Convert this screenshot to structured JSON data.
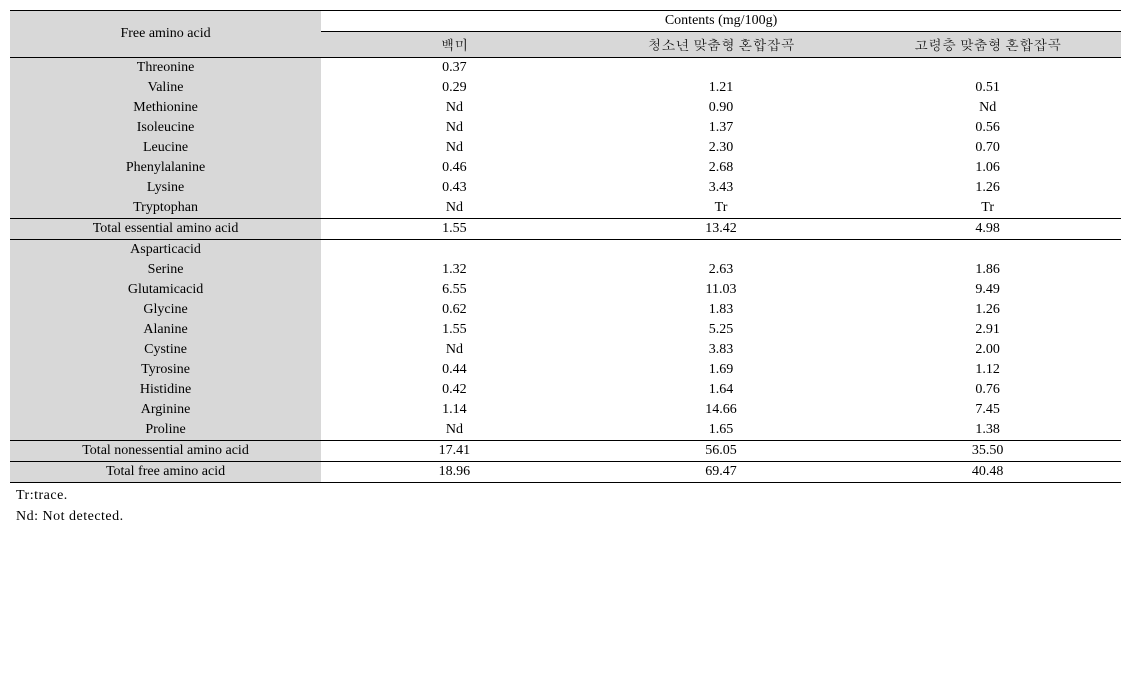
{
  "header": {
    "rowLabel": "Free amino acid",
    "superHeader": "Contents (mg/100g)",
    "columns": [
      "백미",
      "청소년 맞춤형 혼합잡곡",
      "고령층 맞춤형 혼합잡곡"
    ]
  },
  "essential": [
    {
      "name": "Threonine",
      "v1": "0.37",
      "v2": "",
      "v3": ""
    },
    {
      "name": "Valine",
      "v1": "0.29",
      "v2": "1.21",
      "v3": "0.51"
    },
    {
      "name": "Methionine",
      "v1": "Nd",
      "v2": "0.90",
      "v3": "Nd"
    },
    {
      "name": "Isoleucine",
      "v1": "Nd",
      "v2": "1.37",
      "v3": "0.56"
    },
    {
      "name": "Leucine",
      "v1": "Nd",
      "v2": "2.30",
      "v3": "0.70"
    },
    {
      "name": "Phenylalanine",
      "v1": "0.46",
      "v2": "2.68",
      "v3": "1.06"
    },
    {
      "name": "Lysine",
      "v1": "0.43",
      "v2": "3.43",
      "v3": "1.26"
    },
    {
      "name": "Tryptophan",
      "v1": "Nd",
      "v2": "Tr",
      "v3": "Tr"
    }
  ],
  "essentialTotal": {
    "name": "Total essential amino acid",
    "v1": "1.55",
    "v2": "13.42",
    "v3": "4.98"
  },
  "nonessential": [
    {
      "name": "Asparticacid",
      "v1": "",
      "v2": "",
      "v3": ""
    },
    {
      "name": "Serine",
      "v1": "1.32",
      "v2": "2.63",
      "v3": "1.86"
    },
    {
      "name": "Glutamicacid",
      "v1": "6.55",
      "v2": "11.03",
      "v3": "9.49"
    },
    {
      "name": "Glycine",
      "v1": "0.62",
      "v2": "1.83",
      "v3": "1.26"
    },
    {
      "name": "Alanine",
      "v1": "1.55",
      "v2": "5.25",
      "v3": "2.91"
    },
    {
      "name": "Cystine",
      "v1": "Nd",
      "v2": "3.83",
      "v3": "2.00"
    },
    {
      "name": "Tyrosine",
      "v1": "0.44",
      "v2": "1.69",
      "v3": "1.12"
    },
    {
      "name": "Histidine",
      "v1": "0.42",
      "v2": "1.64",
      "v3": "0.76"
    },
    {
      "name": "Arginine",
      "v1": "1.14",
      "v2": "14.66",
      "v3": "7.45"
    },
    {
      "name": "Proline",
      "v1": "Nd",
      "v2": "1.65",
      "v3": "1.38"
    }
  ],
  "nonessentialTotal": {
    "name": "Total nonessential amino acid",
    "v1": "17.41",
    "v2": "56.05",
    "v3": "35.50"
  },
  "grandTotal": {
    "name": "Total free amino acid",
    "v1": "18.96",
    "v2": "69.47",
    "v3": "40.48"
  },
  "footnotes": [
    "Tr:trace.",
    "Nd: Not detected."
  ]
}
